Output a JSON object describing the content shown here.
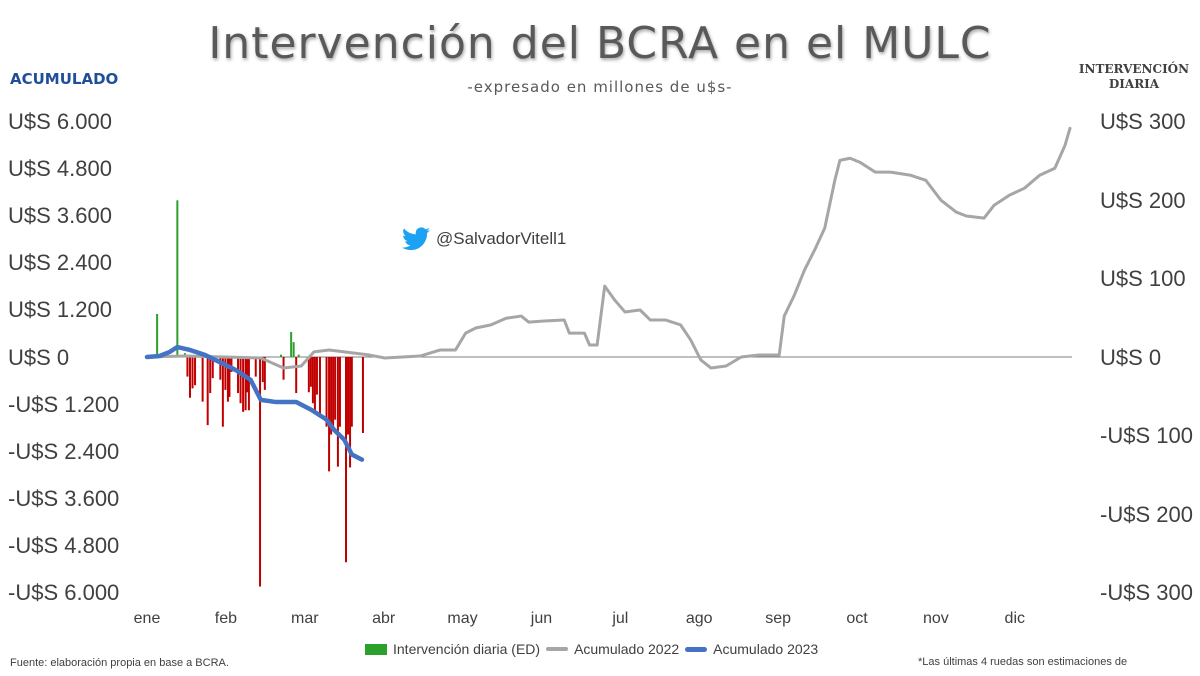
{
  "chart_data": {
    "type": "bar+line",
    "title": "Intervención del BCRA en el MULC",
    "subtitle": "-expresado en millones de u$s-",
    "left_axis_label": "ACUMULADO",
    "right_axis_label": "INTERVENCIÓN DIARIA",
    "left_ticks": [
      "U$S 6.000",
      "U$S 4.800",
      "U$S 3.600",
      "U$S 2.400",
      "U$S 1.200",
      "U$S 0",
      "-U$S 1.200",
      "-U$S 2.400",
      "-U$S 3.600",
      "-U$S 4.800",
      "-U$S 6.000"
    ],
    "right_ticks": [
      "U$S 300",
      "U$S 200",
      "U$S 100",
      "U$S 0",
      "-U$S 100",
      "-U$S 200",
      "-U$S 300"
    ],
    "ylim_left": [
      -6000,
      6000
    ],
    "ylim_right": [
      -300,
      300
    ],
    "months": [
      "ene",
      "feb",
      "mar",
      "abr",
      "may",
      "jun",
      "jul",
      "ago",
      "sep",
      "oct",
      "nov",
      "dic"
    ],
    "x_unit": "day of year",
    "series": [
      {
        "name": "Intervención diaria (ED)",
        "axis": "right",
        "type": "bar",
        "points": [
          [
            4,
            55
          ],
          [
            12,
            200
          ],
          [
            15,
            5
          ],
          [
            16,
            -25
          ],
          [
            17,
            -52
          ],
          [
            18,
            -40
          ],
          [
            19,
            -36
          ],
          [
            22,
            -57
          ],
          [
            24,
            -87
          ],
          [
            25,
            -46
          ],
          [
            26,
            -27
          ],
          [
            29,
            -29
          ],
          [
            30,
            -89
          ],
          [
            31,
            -42
          ],
          [
            32,
            -57
          ],
          [
            32.6,
            -51
          ],
          [
            33.4,
            -19
          ],
          [
            36,
            -46
          ],
          [
            37,
            -59
          ],
          [
            38,
            -70
          ],
          [
            39,
            -68
          ],
          [
            39.6,
            -45
          ],
          [
            40.3,
            -68
          ],
          [
            43,
            -25
          ],
          [
            44.7,
            -293
          ],
          [
            45.8,
            -32
          ],
          [
            46.6,
            -42
          ],
          [
            53,
            3
          ],
          [
            54,
            -29
          ],
          [
            57,
            32
          ],
          [
            58,
            19
          ],
          [
            59,
            -46
          ],
          [
            60,
            3
          ],
          [
            64,
            -45
          ],
          [
            64.8,
            -38
          ],
          [
            65.6,
            -59
          ],
          [
            66.4,
            -70
          ],
          [
            67.2,
            -48
          ],
          [
            68.4,
            -76
          ],
          [
            71,
            -89
          ],
          [
            72,
            -146
          ],
          [
            72.8,
            -99
          ],
          [
            73.6,
            -93
          ],
          [
            74.4,
            -80
          ],
          [
            75.5,
            -140
          ],
          [
            76.3,
            -89
          ],
          [
            78.7,
            -262
          ],
          [
            79.5,
            -99
          ],
          [
            80.3,
            -141
          ],
          [
            81,
            -89
          ],
          [
            85.4,
            -97
          ]
        ]
      },
      {
        "name": "Acumulado 2022",
        "axis": "left",
        "type": "line",
        "points": [
          [
            0,
            0
          ],
          [
            15,
            25
          ],
          [
            31,
            0
          ],
          [
            45,
            -25
          ],
          [
            54,
            -280
          ],
          [
            61,
            -230
          ],
          [
            66,
            130
          ],
          [
            72,
            180
          ],
          [
            78,
            130
          ],
          [
            88,
            50
          ],
          [
            94,
            -25
          ],
          [
            108,
            25
          ],
          [
            116,
            180
          ],
          [
            122,
            180
          ],
          [
            126,
            610
          ],
          [
            130,
            740
          ],
          [
            136,
            820
          ],
          [
            142,
            990
          ],
          [
            148,
            1045
          ],
          [
            151,
            890
          ],
          [
            157,
            920
          ],
          [
            165,
            945
          ],
          [
            167,
            610
          ],
          [
            173,
            610
          ],
          [
            175,
            305
          ],
          [
            178,
            305
          ],
          [
            181,
            1810
          ],
          [
            185,
            1450
          ],
          [
            189,
            1150
          ],
          [
            195,
            1200
          ],
          [
            199,
            945
          ],
          [
            205,
            945
          ],
          [
            211,
            820
          ],
          [
            215,
            435
          ],
          [
            219,
            -75
          ],
          [
            223,
            -280
          ],
          [
            229,
            -230
          ],
          [
            235,
            0
          ],
          [
            242,
            50
          ],
          [
            250,
            50
          ],
          [
            252,
            1045
          ],
          [
            256,
            1580
          ],
          [
            260,
            2220
          ],
          [
            264,
            2730
          ],
          [
            268,
            3290
          ],
          [
            272,
            4510
          ],
          [
            274,
            5020
          ],
          [
            278,
            5075
          ],
          [
            282,
            4970
          ],
          [
            288,
            4720
          ],
          [
            294,
            4720
          ],
          [
            302,
            4640
          ],
          [
            308,
            4510
          ],
          [
            314,
            4000
          ],
          [
            320,
            3700
          ],
          [
            324,
            3600
          ],
          [
            331,
            3545
          ],
          [
            335,
            3875
          ],
          [
            341,
            4130
          ],
          [
            347,
            4310
          ],
          [
            353,
            4640
          ],
          [
            359,
            4820
          ],
          [
            363,
            5400
          ],
          [
            365,
            5840
          ]
        ]
      },
      {
        "name": "Acumulado 2023",
        "axis": "left",
        "type": "line",
        "points": [
          [
            0,
            0
          ],
          [
            5,
            25
          ],
          [
            9,
            130
          ],
          [
            12,
            255
          ],
          [
            17,
            180
          ],
          [
            23,
            50
          ],
          [
            27,
            -75
          ],
          [
            35,
            -330
          ],
          [
            41,
            -585
          ],
          [
            45,
            -1095
          ],
          [
            51,
            -1150
          ],
          [
            59,
            -1150
          ],
          [
            65,
            -1350
          ],
          [
            71,
            -1600
          ],
          [
            74,
            -1860
          ],
          [
            78,
            -2110
          ],
          [
            81,
            -2490
          ],
          [
            85,
            -2620
          ]
        ]
      }
    ],
    "colors": {
      "positive": "#2ca02c",
      "negative": "#c00000",
      "acum2022": "#a6a6a6",
      "acum2023": "#4472c4",
      "zero_line": "#7f7f7f"
    }
  },
  "handle": "@SalvadorVitell1",
  "source": "Fuente: elaboración propia en base a BCRA.",
  "note": "*Las últimas 4 ruedas son estimaciones de"
}
